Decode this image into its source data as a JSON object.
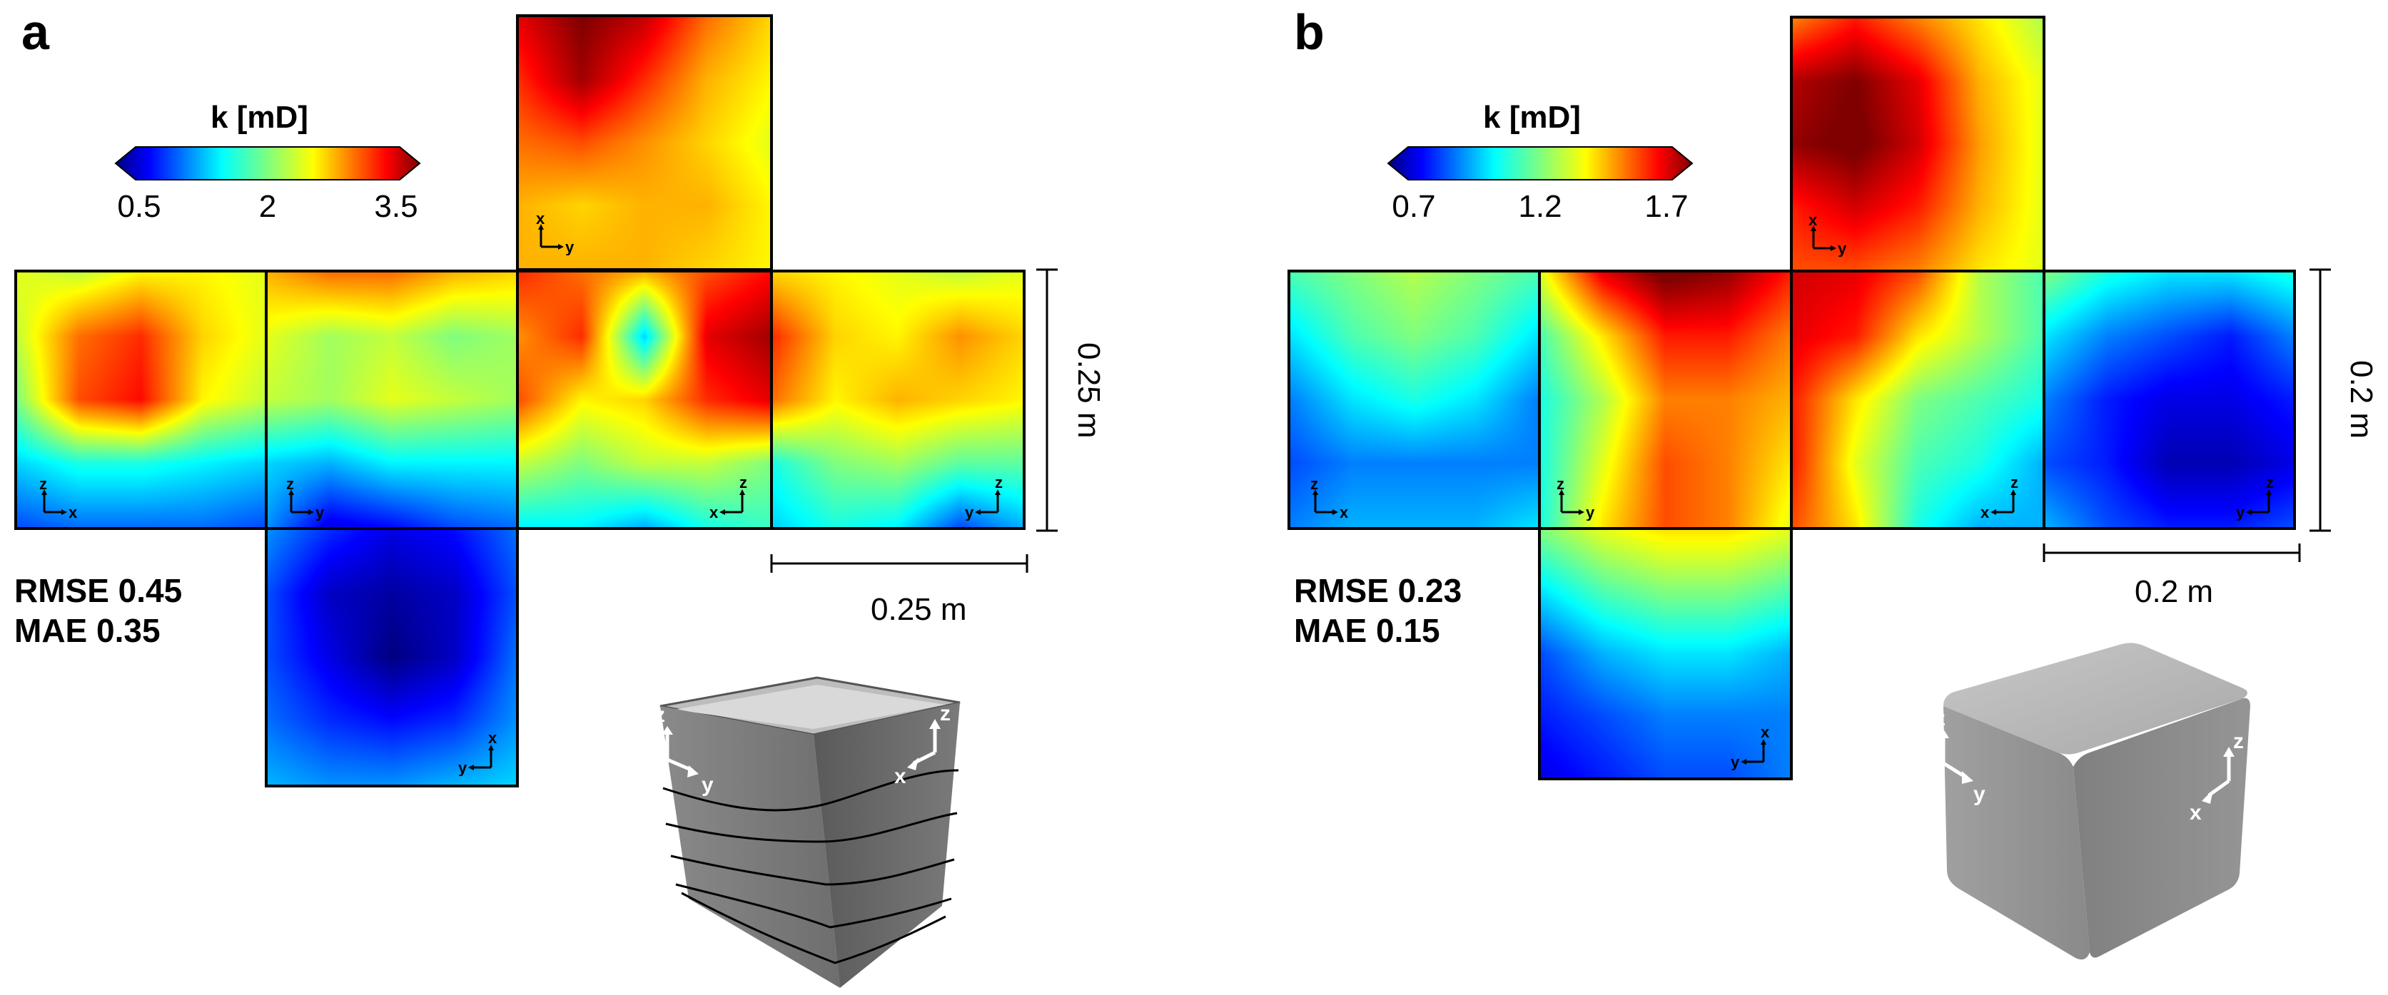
{
  "panels": [
    {
      "letter": "a",
      "colorbar": {
        "title": "k [mD]",
        "ticks": [
          "0.5",
          "2",
          "3.5"
        ],
        "range": [
          0.5,
          3.5
        ]
      },
      "metrics": {
        "rmse": "RMSE 0.45",
        "mae": "MAE 0.35"
      },
      "scale_h": "0.25 m",
      "scale_v": "0.25 m",
      "faces": [
        {
          "id": "top",
          "axes": [
            "x",
            "y"
          ]
        },
        {
          "id": "left",
          "axes": [
            "z",
            "x"
          ]
        },
        {
          "id": "front",
          "axes": [
            "z",
            "y"
          ]
        },
        {
          "id": "right",
          "axes": [
            "x",
            "z"
          ]
        },
        {
          "id": "back",
          "axes": [
            "y",
            "z"
          ]
        },
        {
          "id": "bottom",
          "axes": [
            "y",
            "x"
          ]
        }
      ],
      "photo_axes": {
        "left": [
          "z",
          "y"
        ],
        "right": [
          "z",
          "x"
        ]
      }
    },
    {
      "letter": "b",
      "colorbar": {
        "title": "k [mD]",
        "ticks": [
          "0.7",
          "1.2",
          "1.7"
        ],
        "range": [
          0.7,
          1.7
        ]
      },
      "metrics": {
        "rmse": "RMSE 0.23",
        "mae": "MAE 0.15"
      },
      "scale_h": "0.2 m",
      "scale_v": "0.2 m",
      "faces": [
        {
          "id": "top",
          "axes": [
            "x",
            "y"
          ]
        },
        {
          "id": "left",
          "axes": [
            "z",
            "x"
          ]
        },
        {
          "id": "front",
          "axes": [
            "z",
            "y"
          ]
        },
        {
          "id": "right",
          "axes": [
            "x",
            "z"
          ]
        },
        {
          "id": "back",
          "axes": [
            "y",
            "z"
          ]
        },
        {
          "id": "bottom",
          "axes": [
            "y",
            "x"
          ]
        }
      ],
      "photo_axes": {
        "left": [
          "z",
          "y"
        ],
        "right": [
          "z",
          "x"
        ]
      }
    }
  ],
  "chart_data": [
    {
      "type": "heatmap",
      "title": "a",
      "colorbar_label": "k [mD]",
      "colorbar_ticks": [
        0.5,
        2,
        3.5
      ],
      "range": [
        0.5,
        3.5
      ],
      "rmse": 0.45,
      "mae": 0.35,
      "face_size_m": 0.25,
      "faces": {
        "top": [
          [
            3.2,
            3.5,
            3.3,
            2.8,
            2.5
          ],
          [
            3.0,
            3.4,
            3.0,
            2.6,
            2.4
          ],
          [
            2.8,
            2.9,
            2.7,
            2.5,
            2.3
          ],
          [
            2.6,
            2.5,
            2.6,
            2.6,
            2.4
          ],
          [
            2.6,
            2.6,
            2.6,
            2.5,
            2.4
          ]
        ],
        "left": [
          [
            2.3,
            2.2,
            2.4,
            2.4,
            2.3
          ],
          [
            2.2,
            2.8,
            3.0,
            2.5,
            2.3
          ],
          [
            2.0,
            2.9,
            3.1,
            2.4,
            2.2
          ],
          [
            1.5,
            1.7,
            1.7,
            1.6,
            1.5
          ],
          [
            1.1,
            1.2,
            1.2,
            1.2,
            1.1
          ]
        ],
        "front": [
          [
            2.6,
            2.8,
            2.8,
            2.6,
            2.5
          ],
          [
            2.3,
            2.1,
            2.2,
            2.0,
            2.1
          ],
          [
            2.2,
            2.1,
            2.3,
            2.2,
            2.1
          ],
          [
            1.5,
            1.4,
            1.6,
            1.6,
            1.6
          ],
          [
            1.3,
            0.8,
            0.9,
            1.1,
            1.2
          ]
        ],
        "right": [
          [
            3.0,
            2.8,
            2.6,
            2.9,
            3.1
          ],
          [
            2.7,
            3.0,
            1.5,
            3.2,
            3.4
          ],
          [
            2.9,
            2.4,
            2.5,
            3.0,
            3.2
          ],
          [
            2.2,
            2.0,
            2.2,
            2.2,
            2.0
          ],
          [
            1.6,
            1.6,
            1.4,
            1.7,
            1.8
          ]
        ],
        "back": [
          [
            2.5,
            2.4,
            2.3,
            2.2,
            2.3
          ],
          [
            3.0,
            2.5,
            2.4,
            2.7,
            2.5
          ],
          [
            2.8,
            2.4,
            2.6,
            2.5,
            2.4
          ],
          [
            1.7,
            2.0,
            2.1,
            1.9,
            1.9
          ],
          [
            1.5,
            1.7,
            1.6,
            1.1,
            1.4
          ]
        ],
        "bottom": [
          [
            1.3,
            1.0,
            0.8,
            0.9,
            1.2
          ],
          [
            1.1,
            0.7,
            0.6,
            0.7,
            1.1
          ],
          [
            1.1,
            0.8,
            0.5,
            0.7,
            1.2
          ],
          [
            1.2,
            1.0,
            0.9,
            1.0,
            1.3
          ],
          [
            1.4,
            1.3,
            1.3,
            1.4,
            1.5
          ]
        ]
      }
    },
    {
      "type": "heatmap",
      "title": "b",
      "colorbar_label": "k [mD]",
      "colorbar_ticks": [
        0.7,
        1.2,
        1.7
      ],
      "range": [
        0.7,
        1.7
      ],
      "rmse": 0.23,
      "mae": 0.15,
      "face_size_m": 0.2,
      "faces": {
        "top": [
          [
            1.45,
            1.55,
            1.45,
            1.35,
            1.25
          ],
          [
            1.65,
            1.7,
            1.6,
            1.4,
            1.3
          ],
          [
            1.68,
            1.72,
            1.62,
            1.42,
            1.3
          ],
          [
            1.55,
            1.62,
            1.55,
            1.4,
            1.3
          ],
          [
            1.5,
            1.5,
            1.45,
            1.35,
            1.3
          ]
        ],
        "left": [
          [
            1.15,
            1.2,
            1.25,
            1.2,
            1.15
          ],
          [
            1.05,
            1.15,
            1.2,
            1.15,
            1.05
          ],
          [
            0.95,
            1.05,
            1.1,
            1.05,
            0.95
          ],
          [
            0.9,
            0.95,
            0.95,
            0.95,
            0.95
          ],
          [
            0.95,
            1.0,
            1.0,
            1.0,
            1.05
          ]
        ],
        "front": [
          [
            1.3,
            1.6,
            1.72,
            1.68,
            1.55
          ],
          [
            1.15,
            1.35,
            1.55,
            1.55,
            1.45
          ],
          [
            1.1,
            1.25,
            1.45,
            1.45,
            1.4
          ],
          [
            1.1,
            1.3,
            1.5,
            1.45,
            1.35
          ],
          [
            1.1,
            1.35,
            1.5,
            1.45,
            1.3
          ]
        ],
        "right": [
          [
            1.62,
            1.6,
            1.5,
            1.25,
            1.15
          ],
          [
            1.6,
            1.55,
            1.35,
            1.25,
            1.15
          ],
          [
            1.55,
            1.35,
            1.2,
            1.15,
            1.1
          ],
          [
            1.55,
            1.3,
            1.15,
            1.1,
            1.0
          ],
          [
            1.5,
            1.35,
            1.1,
            1.0,
            1.0
          ]
        ],
        "back": [
          [
            1.2,
            1.1,
            1.05,
            1.05,
            1.1
          ],
          [
            1.05,
            0.95,
            0.9,
            0.85,
            0.95
          ],
          [
            0.95,
            0.85,
            0.8,
            0.8,
            0.85
          ],
          [
            0.9,
            0.85,
            0.75,
            0.75,
            0.8
          ],
          [
            1.0,
            0.9,
            0.85,
            0.85,
            0.9
          ]
        ],
        "bottom": [
          [
            1.2,
            1.3,
            1.35,
            1.35,
            1.3
          ],
          [
            1.05,
            1.15,
            1.2,
            1.2,
            1.15
          ],
          [
            0.9,
            1.0,
            1.05,
            1.05,
            1.0
          ],
          [
            0.85,
            0.9,
            0.95,
            0.95,
            0.95
          ],
          [
            0.8,
            0.85,
            0.9,
            0.9,
            0.95
          ]
        ]
      }
    }
  ]
}
